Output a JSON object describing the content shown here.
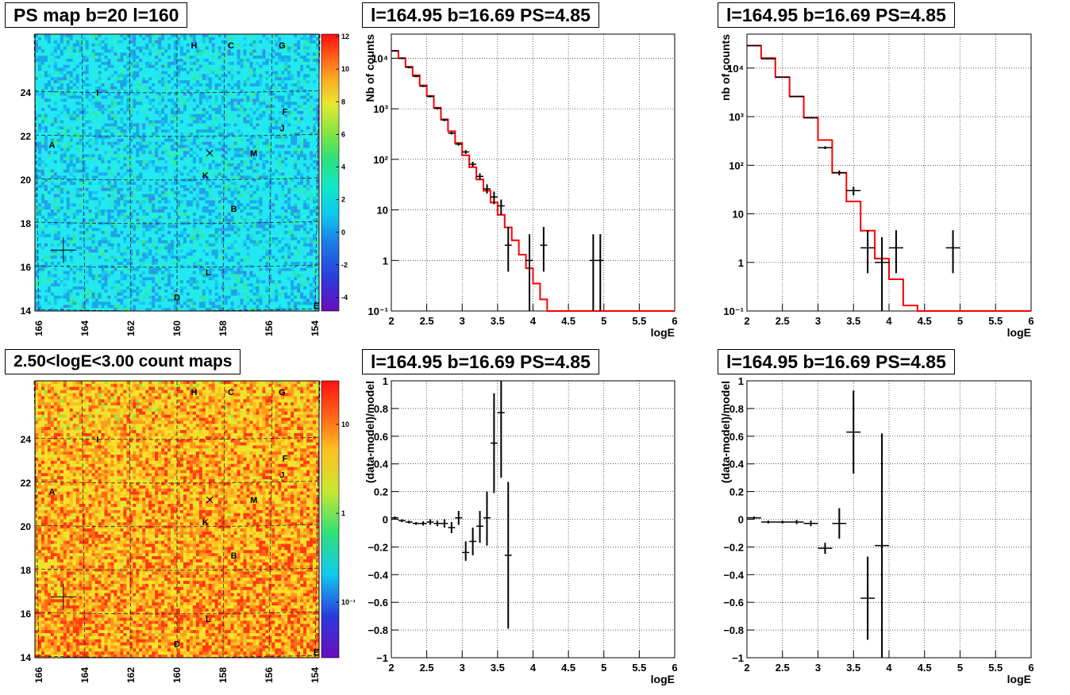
{
  "titles": {
    "map_top": "PS map b=20 l=160",
    "map_bottom": "2.50<logE<3.00 count maps",
    "spec_tl": "l=164.95 b=16.69 PS=4.85",
    "spec_tr": "l=164.95 b=16.69 PS=4.85",
    "res_bl": "l=164.95 b=16.69 PS=4.85",
    "res_br": "l=164.95 b=16.69 PS=4.85"
  },
  "maps": {
    "x_ticks": [
      "166",
      "164",
      "162",
      "160",
      "158",
      "156",
      "154"
    ],
    "y_ticks": [
      "14",
      "16",
      "18",
      "20",
      "22",
      "24"
    ],
    "source_labels": [
      "H",
      "C",
      "G",
      "I",
      "F",
      "J",
      "A",
      "M",
      "K",
      "B",
      "L",
      "D",
      "E"
    ],
    "top_colorbar_ticks": [
      "12",
      "10",
      "8",
      "6",
      "4",
      "2",
      "0",
      "-2",
      "-4"
    ],
    "bottom_colorbar_ticks": [
      "10",
      "1",
      "10⁻¹"
    ]
  },
  "chart_data": [
    {
      "type": "line",
      "panel": "spectrum-left",
      "xlabel": "logE",
      "ylabel": "Nb of counts",
      "xlim": [
        2,
        6
      ],
      "ylim": [
        0.1,
        30000
      ],
      "log_y": true,
      "grid": true,
      "x_ticks": [
        "2",
        "2.5",
        "3",
        "3.5",
        "4",
        "4.5",
        "5",
        "5.5",
        "6"
      ],
      "y_ticks": [
        "10⁻¹",
        "1",
        "10",
        "10²",
        "10³",
        "10⁴"
      ],
      "series": [
        {
          "kind": "model-histogram",
          "color": "#ff0000",
          "edges": [
            2,
            2.1,
            2.2,
            2.3,
            2.4,
            2.5,
            2.6,
            2.7,
            2.8,
            2.9,
            3.0,
            3.1,
            3.2,
            3.3,
            3.4,
            3.5,
            3.6,
            3.7,
            3.8,
            3.9,
            4.0,
            4.1,
            4.2,
            6.0
          ],
          "values": [
            14000,
            10000,
            6800,
            4600,
            2900,
            1800,
            1050,
            620,
            360,
            210,
            120,
            70,
            40,
            24,
            14,
            8,
            4.5,
            2.5,
            1.3,
            0.7,
            0.35,
            0.17,
            0.1
          ]
        },
        {
          "kind": "data-points",
          "color": "#000000",
          "x": [
            2.05,
            2.15,
            2.25,
            2.35,
            2.45,
            2.55,
            2.65,
            2.75,
            2.85,
            2.95,
            3.05,
            3.15,
            3.25,
            3.35,
            3.45,
            3.55,
            3.65,
            3.95,
            4.15,
            4.85,
            4.95
          ],
          "y": [
            14000,
            10000,
            6600,
            4400,
            2800,
            1750,
            1020,
            600,
            330,
            200,
            140,
            80,
            46,
            26,
            18,
            12,
            2,
            1,
            2,
            1,
            1
          ],
          "ylow": [
            13500,
            9600,
            6300,
            4200,
            2700,
            1680,
            970,
            570,
            310,
            186,
            128,
            72,
            40,
            21,
            13,
            8,
            0.6,
            0.1,
            0.6,
            0.1,
            0.1
          ],
          "yhigh": [
            14500,
            10400,
            6900,
            4600,
            2900,
            1830,
            1070,
            630,
            350,
            214,
            152,
            90,
            53,
            32,
            23,
            16,
            4.6,
            3.3,
            4.6,
            3.3,
            3.3
          ]
        }
      ]
    },
    {
      "type": "line",
      "panel": "spectrum-right",
      "xlabel": "logE",
      "ylabel": "nb of counts",
      "xlim": [
        2,
        6
      ],
      "ylim": [
        0.1,
        50000
      ],
      "log_y": true,
      "grid": true,
      "x_ticks": [
        "2",
        "2.5",
        "3",
        "3.5",
        "4",
        "4.5",
        "5",
        "5.5",
        "6"
      ],
      "y_ticks": [
        "10⁻¹",
        "1",
        "10",
        "10²",
        "10³",
        "10⁴"
      ],
      "series": [
        {
          "kind": "model-histogram",
          "color": "#ff0000",
          "edges": [
            2,
            2.2,
            2.4,
            2.6,
            2.8,
            3.0,
            3.2,
            3.4,
            3.6,
            3.8,
            4.0,
            4.2,
            4.4,
            6.0
          ],
          "values": [
            29000,
            16000,
            6500,
            2600,
            950,
            330,
            70,
            18,
            4.5,
            1.2,
            0.45,
            0.13,
            0.1
          ]
        },
        {
          "kind": "data-points",
          "color": "#000000",
          "x": [
            2.1,
            2.3,
            2.5,
            2.7,
            2.9,
            3.1,
            3.3,
            3.5,
            3.7,
            3.9,
            4.1,
            4.9
          ],
          "y": [
            29000,
            15500,
            6500,
            2600,
            950,
            230,
            70,
            30,
            2,
            1,
            2,
            2
          ],
          "ylow": [
            28500,
            15200,
            6400,
            2550,
            920,
            215,
            62,
            24,
            0.6,
            0.1,
            0.6,
            0.6
          ],
          "yhigh": [
            29500,
            15800,
            6600,
            2650,
            980,
            245,
            78,
            36,
            4.6,
            3.3,
            4.6,
            4.6
          ]
        }
      ]
    },
    {
      "type": "scatter",
      "panel": "residual-left",
      "xlabel": "logE",
      "ylabel": "(data-model)/model",
      "xlim": [
        2,
        6
      ],
      "ylim": [
        -1,
        1
      ],
      "grid": true,
      "x_ticks": [
        "2",
        "2.5",
        "3",
        "3.5",
        "4",
        "4.5",
        "5",
        "5.5",
        "6"
      ],
      "y_ticks": [
        "−1",
        "−0.8",
        "−0.6",
        "−0.4",
        "−0.2",
        "0",
        "0.2",
        "0.4",
        "0.6",
        "0.8",
        "1"
      ],
      "series": [
        {
          "kind": "data-points",
          "color": "#000000",
          "x": [
            2.05,
            2.15,
            2.25,
            2.35,
            2.45,
            2.55,
            2.65,
            2.75,
            2.85,
            2.95,
            3.05,
            3.15,
            3.25,
            3.35,
            3.45,
            3.55,
            3.65
          ],
          "y": [
            0.01,
            -0.01,
            -0.02,
            -0.03,
            -0.03,
            -0.02,
            -0.03,
            -0.03,
            -0.06,
            0.01,
            -0.24,
            -0.16,
            -0.05,
            0.01,
            0.55,
            0.77,
            -0.26
          ],
          "ylow": [
            0.0,
            -0.02,
            -0.03,
            -0.04,
            -0.045,
            -0.04,
            -0.05,
            -0.06,
            -0.1,
            -0.04,
            -0.3,
            -0.26,
            -0.17,
            -0.19,
            0.19,
            0.3,
            -0.79
          ],
          "yhigh": [
            0.02,
            0.0,
            -0.01,
            -0.02,
            -0.015,
            0.0,
            -0.01,
            0.0,
            -0.02,
            0.06,
            -0.16,
            -0.06,
            0.06,
            0.2,
            0.91,
            1.0,
            0.27
          ]
        }
      ]
    },
    {
      "type": "scatter",
      "panel": "residual-right",
      "xlabel": "logE",
      "ylabel": "(data-model)/model",
      "xlim": [
        2,
        6
      ],
      "ylim": [
        -1,
        1
      ],
      "grid": true,
      "x_ticks": [
        "2",
        "2.5",
        "3",
        "3.5",
        "4",
        "4.5",
        "5",
        "5.5",
        "6"
      ],
      "y_ticks": [
        "−1",
        "−0.8",
        "−0.6",
        "−0.4",
        "−0.2",
        "0",
        "0.2",
        "0.4",
        "0.6",
        "0.8",
        "1"
      ],
      "series": [
        {
          "kind": "data-points",
          "color": "#000000",
          "x": [
            2.1,
            2.3,
            2.5,
            2.7,
            2.9,
            3.1,
            3.3,
            3.5,
            3.7,
            3.9
          ],
          "y": [
            0.01,
            -0.02,
            -0.02,
            -0.02,
            -0.03,
            -0.21,
            -0.03,
            0.63,
            -0.57,
            -0.19
          ],
          "ylow": [
            0.0,
            -0.03,
            -0.03,
            -0.035,
            -0.05,
            -0.25,
            -0.14,
            0.33,
            -0.87,
            -1.0
          ],
          "yhigh": [
            0.02,
            -0.01,
            -0.01,
            -0.005,
            -0.01,
            -0.17,
            0.08,
            0.93,
            -0.27,
            0.62
          ]
        }
      ]
    }
  ]
}
